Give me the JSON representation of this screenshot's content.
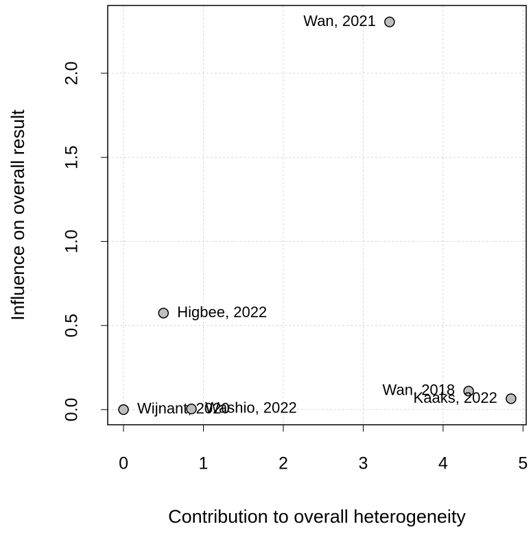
{
  "chart_data": {
    "type": "scatter",
    "xlabel": "Contribution to overall heterogeneity",
    "ylabel": "Influence on overall result",
    "series": [
      {
        "name": null,
        "color": "#bebebe",
        "labels": [
          "Wan, 2021",
          "Higbee, 2022",
          "Wijnant, 2020",
          "Washio, 2022",
          "Wan, 2018",
          "Kaaks, 2022"
        ],
        "x": [
          3.33,
          0.5,
          0.0,
          0.85,
          4.32,
          4.85
        ],
        "values": [
          2.305,
          0.574,
          0.0,
          0.004,
          0.11,
          0.065
        ]
      }
    ],
    "xlim": [
      -0.198,
      5.04
    ],
    "ylim": [
      -0.09,
      2.403
    ],
    "xticks": [
      0,
      1,
      2,
      3,
      4,
      5
    ],
    "yticks": [
      {
        "value": 0,
        "label": "0.0"
      },
      0.5,
      {
        "value": 1,
        "label": "1.0"
      },
      1.5,
      {
        "value": 2,
        "label": "2.0"
      }
    ],
    "grid": true
  }
}
